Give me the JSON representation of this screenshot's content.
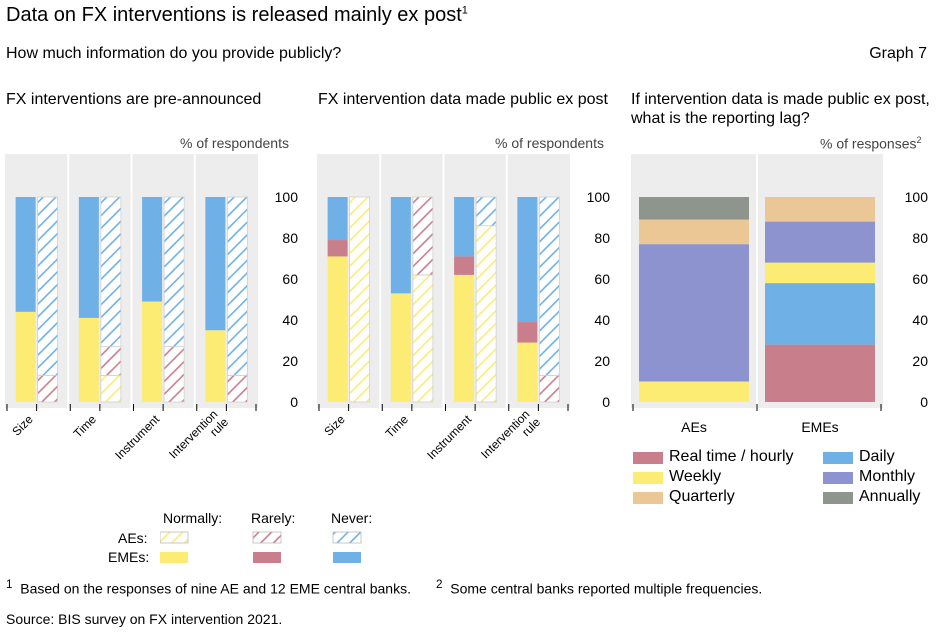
{
  "header": {
    "title": "Data on FX interventions is released mainly ex post",
    "title_sup": "1",
    "subtitle": "How much information do you provide publicly?",
    "graph_number": "Graph 7"
  },
  "colors": {
    "yellow": "#fcec74",
    "red": "#c97e8c",
    "blue": "#6fb1e6",
    "purple": "#8d93cf",
    "tan": "#ebc796",
    "grey": "#8d958d",
    "panel_bg": "#ededed"
  },
  "chart_data": [
    {
      "type": "bar",
      "stacked": true,
      "title": "FX interventions are pre-announced",
      "unit_label": "% of respondents",
      "categories": [
        "Size",
        "Time",
        "Instrument",
        "Intervention rule"
      ],
      "ylim": [
        0,
        100
      ],
      "yticks": [
        0,
        20,
        40,
        60,
        80,
        100
      ],
      "grid": false,
      "groups": [
        {
          "name": "EMEs",
          "pattern": "solid",
          "series": [
            {
              "name": "Normally",
              "color_key": "yellow",
              "values": [
                44,
                41,
                49,
                35
              ]
            },
            {
              "name": "Rarely",
              "color_key": "red",
              "values": [
                0,
                0,
                0,
                0
              ]
            },
            {
              "name": "Never",
              "color_key": "blue",
              "values": [
                56,
                59,
                51,
                65
              ]
            }
          ]
        },
        {
          "name": "AEs",
          "pattern": "hatched",
          "series": [
            {
              "name": "Normally",
              "color_key": "yellow",
              "values": [
                0,
                13,
                0,
                0
              ]
            },
            {
              "name": "Rarely",
              "color_key": "red",
              "values": [
                13,
                14,
                27,
                13
              ]
            },
            {
              "name": "Never",
              "color_key": "blue",
              "values": [
                87,
                73,
                73,
                87
              ]
            }
          ]
        }
      ]
    },
    {
      "type": "bar",
      "stacked": true,
      "title": "FX intervention data made public ex post",
      "unit_label": "% of respondents",
      "categories": [
        "Size",
        "Time",
        "Instrument",
        "Intervention rule"
      ],
      "ylim": [
        0,
        100
      ],
      "yticks": [
        0,
        20,
        40,
        60,
        80,
        100
      ],
      "grid": false,
      "groups": [
        {
          "name": "EMEs",
          "pattern": "solid",
          "series": [
            {
              "name": "Normally",
              "color_key": "yellow",
              "values": [
                71,
                53,
                62,
                29
              ]
            },
            {
              "name": "Rarely",
              "color_key": "red",
              "values": [
                8,
                0,
                9,
                10
              ]
            },
            {
              "name": "Never",
              "color_key": "blue",
              "values": [
                21,
                47,
                29,
                61
              ]
            }
          ]
        },
        {
          "name": "AEs",
          "pattern": "hatched",
          "series": [
            {
              "name": "Normally",
              "color_key": "yellow",
              "values": [
                100,
                62,
                86,
                0
              ]
            },
            {
              "name": "Rarely",
              "color_key": "red",
              "values": [
                0,
                38,
                0,
                13
              ]
            },
            {
              "name": "Never",
              "color_key": "blue",
              "values": [
                0,
                0,
                14,
                87
              ]
            }
          ]
        }
      ]
    },
    {
      "type": "bar",
      "stacked": true,
      "title": "If intervention data is made public ex post, what is the reporting lag?",
      "unit_label": "% of responses",
      "unit_sup": "2",
      "categories": [
        "AEs",
        "EMEs"
      ],
      "ylim": [
        0,
        100
      ],
      "yticks": [
        0,
        20,
        40,
        60,
        80,
        100
      ],
      "grid": false,
      "series": [
        {
          "name": "Real time / hourly",
          "color_key": "red",
          "values": [
            0,
            28
          ]
        },
        {
          "name": "Daily",
          "color_key": "blue",
          "values": [
            0,
            30
          ]
        },
        {
          "name": "Weekly",
          "color_key": "yellow",
          "values": [
            10,
            10
          ]
        },
        {
          "name": "Monthly",
          "color_key": "purple",
          "values": [
            67,
            20
          ]
        },
        {
          "name": "Quarterly",
          "color_key": "tan",
          "values": [
            12,
            12
          ]
        },
        {
          "name": "Annually",
          "color_key": "grey",
          "values": [
            11,
            0
          ]
        }
      ]
    }
  ],
  "legend12": {
    "columns": [
      "Normally:",
      "Rarely:",
      "Never:"
    ],
    "rows": [
      "AEs:",
      "EMEs:"
    ]
  },
  "footer": {
    "note1_num": "1",
    "note1_text": "Based on the responses of nine AE and 12 EME central banks.",
    "note2_num": "2",
    "note2_text": "Some central banks reported multiple frequencies.",
    "source": "Source: BIS survey on FX intervention 2021."
  }
}
